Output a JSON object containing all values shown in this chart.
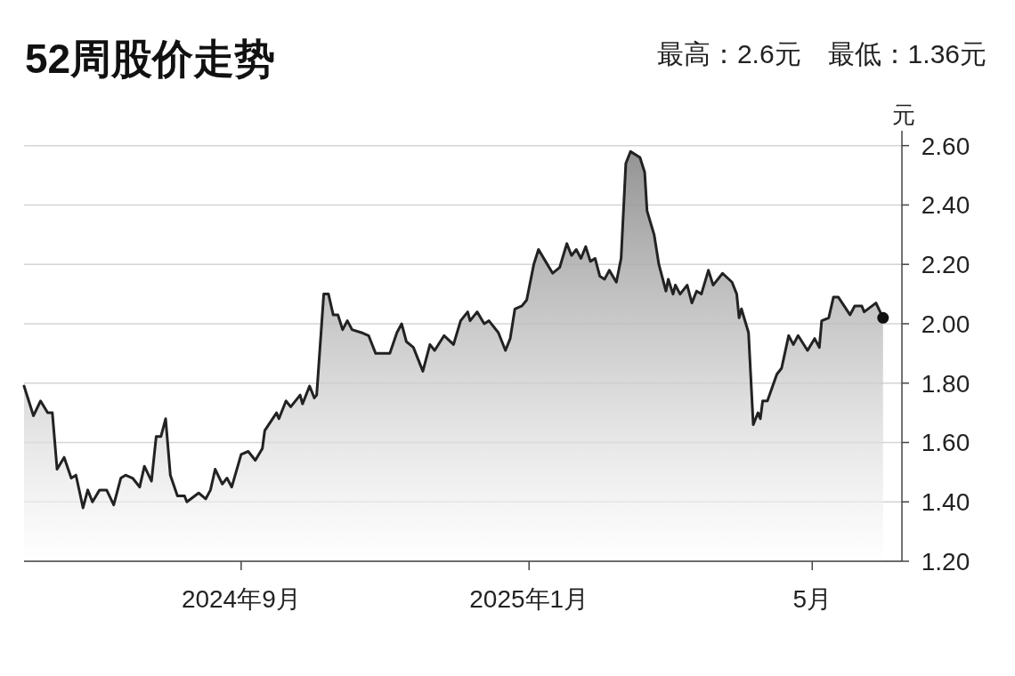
{
  "chart_data": {
    "type": "area",
    "title": "52周股价走势",
    "subtitle": "最高：2.6元　最低：1.36元",
    "ylabel": "元",
    "color": "#222222",
    "grid": "y",
    "marker": "none",
    "line_style": "solid",
    "xlim": [
      "2024-06-01",
      "2025-06-08"
    ],
    "xticks": [
      {
        "value": "2024-09-01",
        "label": "2024年9月"
      },
      {
        "value": "2025-01-01",
        "label": "2025年1月"
      },
      {
        "value": "2025-05-01",
        "label": "5月"
      }
    ],
    "ylim": [
      1.2,
      2.65
    ],
    "yticks": [
      {
        "value": 1.2,
        "label": "1.20"
      },
      {
        "value": 1.4,
        "label": "1.40"
      },
      {
        "value": 1.6,
        "label": "1.60"
      },
      {
        "value": 1.8,
        "label": "1.80"
      },
      {
        "value": 2.0,
        "label": "2.00"
      },
      {
        "value": 2.2,
        "label": "2.20"
      },
      {
        "value": 2.4,
        "label": "2.40"
      },
      {
        "value": 2.6,
        "label": "2.60"
      }
    ],
    "x": [
      "2024-06-01",
      "2024-06-05",
      "2024-06-08",
      "2024-06-11",
      "2024-06-13",
      "2024-06-15",
      "2024-06-18",
      "2024-06-21",
      "2024-06-23",
      "2024-06-26",
      "2024-06-28",
      "2024-06-30",
      "2024-07-03",
      "2024-07-06",
      "2024-07-09",
      "2024-07-12",
      "2024-07-14",
      "2024-07-17",
      "2024-07-20",
      "2024-07-22",
      "2024-07-25",
      "2024-07-27",
      "2024-07-29",
      "2024-07-31",
      "2024-08-02",
      "2024-08-05",
      "2024-08-08",
      "2024-08-09",
      "2024-08-14",
      "2024-08-17",
      "2024-08-19",
      "2024-08-21",
      "2024-08-24",
      "2024-08-26",
      "2024-08-28",
      "2024-09-01",
      "2024-09-04",
      "2024-09-07",
      "2024-09-10",
      "2024-09-11",
      "2024-09-16",
      "2024-09-17",
      "2024-09-20",
      "2024-09-22",
      "2024-09-26",
      "2024-09-27",
      "2024-09-30",
      "2024-10-02",
      "2024-10-03",
      "2024-10-06",
      "2024-10-08",
      "2024-10-10",
      "2024-10-12",
      "2024-10-14",
      "2024-10-16",
      "2024-10-18",
      "2024-10-22",
      "2024-10-25",
      "2024-10-28",
      "2024-11-03",
      "2024-11-06",
      "2024-11-08",
      "2024-11-10",
      "2024-11-13",
      "2024-11-17",
      "2024-11-20",
      "2024-11-22",
      "2024-11-26",
      "2024-11-30",
      "2024-12-03",
      "2024-12-06",
      "2024-12-07",
      "2024-12-10",
      "2024-12-13",
      "2024-12-15",
      "2024-12-19",
      "2024-12-22",
      "2024-12-24",
      "2024-12-26",
      "2024-12-29",
      "2024-12-31",
      "2025-01-03",
      "2025-01-05",
      "2025-01-08",
      "2025-01-11",
      "2025-01-14",
      "2025-01-17",
      "2025-01-19",
      "2025-01-21",
      "2025-01-23",
      "2025-01-25",
      "2025-01-27",
      "2025-01-29",
      "2025-01-31",
      "2025-02-02",
      "2025-02-04",
      "2025-02-07",
      "2025-02-09",
      "2025-02-11",
      "2025-02-13",
      "2025-02-17",
      "2025-02-19",
      "2025-02-20",
      "2025-02-23",
      "2025-02-25",
      "2025-02-28",
      "2025-03-01",
      "2025-03-03",
      "2025-03-04",
      "2025-03-06",
      "2025-03-09",
      "2025-03-11",
      "2025-03-13",
      "2025-03-15",
      "2025-03-18",
      "2025-03-20",
      "2025-03-24",
      "2025-03-28",
      "2025-03-30",
      "2025-03-31",
      "2025-04-01",
      "2025-04-04",
      "2025-04-06",
      "2025-04-08",
      "2025-04-09",
      "2025-04-10",
      "2025-04-12",
      "2025-04-16",
      "2025-04-18",
      "2025-04-21",
      "2025-04-23",
      "2025-04-25",
      "2025-04-29",
      "2025-05-02",
      "2025-05-04",
      "2025-05-05",
      "2025-05-08",
      "2025-05-10",
      "2025-05-12",
      "2025-05-17",
      "2025-05-19",
      "2025-05-22",
      "2025-05-23",
      "2025-05-28",
      "2025-05-31"
    ],
    "values": [
      1.79,
      1.69,
      1.74,
      1.7,
      1.7,
      1.51,
      1.55,
      1.48,
      1.49,
      1.38,
      1.44,
      1.4,
      1.44,
      1.44,
      1.39,
      1.48,
      1.49,
      1.48,
      1.45,
      1.52,
      1.47,
      1.62,
      1.62,
      1.68,
      1.49,
      1.42,
      1.42,
      1.4,
      1.43,
      1.41,
      1.44,
      1.51,
      1.46,
      1.48,
      1.45,
      1.56,
      1.57,
      1.54,
      1.58,
      1.64,
      1.7,
      1.68,
      1.74,
      1.72,
      1.76,
      1.73,
      1.79,
      1.75,
      1.76,
      2.1,
      2.1,
      2.03,
      2.03,
      1.98,
      2.01,
      1.98,
      1.97,
      1.96,
      1.9,
      1.9,
      1.97,
      2.0,
      1.94,
      1.92,
      1.84,
      1.93,
      1.91,
      1.96,
      1.93,
      2.01,
      2.04,
      2.01,
      2.04,
      2.0,
      2.01,
      1.97,
      1.91,
      1.95,
      2.05,
      2.06,
      2.08,
      2.2,
      2.25,
      2.21,
      2.17,
      2.19,
      2.27,
      2.23,
      2.25,
      2.22,
      2.26,
      2.21,
      2.22,
      2.16,
      2.15,
      2.18,
      2.14,
      2.22,
      2.54,
      2.58,
      2.56,
      2.51,
      2.38,
      2.3,
      2.2,
      2.11,
      2.15,
      2.1,
      2.13,
      2.1,
      2.13,
      2.07,
      2.11,
      2.1,
      2.18,
      2.13,
      2.17,
      2.14,
      2.1,
      2.02,
      2.05,
      1.97,
      1.66,
      1.7,
      1.68,
      1.74,
      1.74,
      1.83,
      1.85,
      1.96,
      1.93,
      1.96,
      1.91,
      1.95,
      1.92,
      2.01,
      2.02,
      2.09,
      2.09,
      2.03,
      2.06,
      2.06,
      2.04,
      2.07,
      2.02
    ]
  }
}
